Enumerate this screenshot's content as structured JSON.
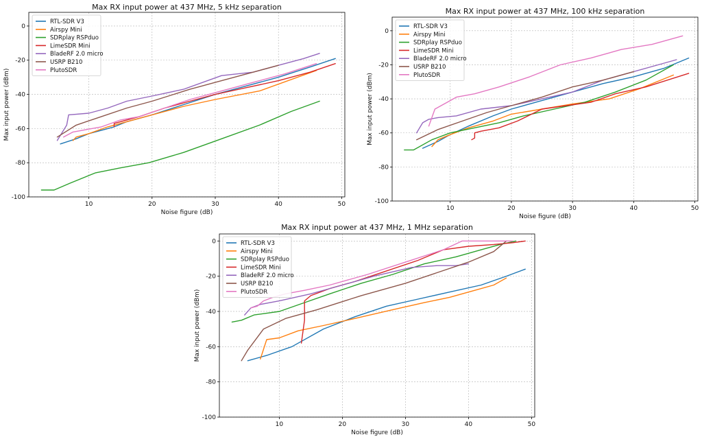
{
  "colors": {
    "RTL-SDR V3": "#1f77b4",
    "Airspy Mini": "#ff7f0e",
    "SDRplay RSPduo": "#2ca02c",
    "LimeSDR Mini": "#d62728",
    "BladeRF 2.0 micro": "#9467bd",
    "USRP B210": "#8c564b",
    "PlutoSDR": "#e377c2"
  },
  "chart_data": [
    {
      "type": "line",
      "title": "Max RX input power at 437 MHz, 5 kHz separation",
      "xlabel": "Noise figure (dB)",
      "ylabel": "Max input power (dBm)",
      "xlim": [
        0.5,
        50.5
      ],
      "ylim": [
        -100,
        8
      ],
      "xticks": [
        10,
        20,
        30,
        40,
        50
      ],
      "yticks": [
        -100,
        -80,
        -60,
        -40,
        -20,
        0
      ],
      "grid": true,
      "legend_position": "top-left",
      "series": [
        {
          "name": "RTL-SDR V3",
          "x": [
            5.5,
            8,
            10,
            12,
            14,
            16,
            20,
            25,
            30,
            35,
            40,
            45,
            49
          ],
          "y": [
            -69,
            -66,
            -63,
            -61,
            -59,
            -56,
            -52,
            -46,
            -40,
            -35,
            -30,
            -24,
            -19
          ]
        },
        {
          "name": "Airspy Mini",
          "x": [
            7.5,
            8,
            10,
            13,
            16,
            20,
            25,
            30,
            37,
            46
          ],
          "y": [
            -67,
            -65,
            -63,
            -59,
            -56,
            -52,
            -47,
            -43,
            -38,
            -26
          ]
        },
        {
          "name": "SDRplay RSPduo",
          "x": [
            2.5,
            4.5,
            7,
            11,
            15,
            19.5,
            25,
            31,
            37,
            42,
            46.5
          ],
          "y": [
            -96,
            -96,
            -92,
            -86,
            -83,
            -80,
            -74,
            -66,
            -58,
            -50,
            -44
          ]
        },
        {
          "name": "LimeSDR Mini",
          "x": [
            14,
            14,
            15,
            18,
            22,
            26,
            30,
            35,
            40,
            45,
            49
          ],
          "y": [
            -59,
            -57,
            -56,
            -53,
            -48,
            -44,
            -40,
            -36,
            -32,
            -27,
            -22
          ]
        },
        {
          "name": "BladeRF 2.0 micro",
          "x": [
            5,
            6.5,
            6.8,
            10,
            13,
            16,
            20,
            25,
            31,
            36,
            40,
            44,
            46.5
          ],
          "y": [
            -67,
            -58,
            -52,
            -51,
            -48,
            -44,
            -41,
            -37,
            -29,
            -27,
            -23,
            -19,
            -16
          ]
        },
        {
          "name": "USRP B210",
          "x": [
            5,
            8,
            12,
            16,
            20,
            26,
            30,
            36,
            40
          ],
          "y": [
            -65,
            -58,
            -53,
            -48,
            -44,
            -37,
            -33,
            -27,
            -23
          ]
        },
        {
          "name": "PlutoSDR",
          "x": [
            6,
            7.5,
            9,
            12,
            15,
            18,
            22,
            26,
            31,
            36,
            41,
            46
          ],
          "y": [
            -65,
            -62,
            -61,
            -59,
            -55,
            -53,
            -48,
            -43,
            -38,
            -33,
            -28,
            -22
          ]
        }
      ]
    },
    {
      "type": "line",
      "title": "Max RX input power at 437 MHz, 100 kHz separation",
      "xlabel": "Noise figure (dB)",
      "ylabel": "Max input power (dBm)",
      "xlim": [
        0.5,
        50.5
      ],
      "ylim": [
        -100,
        8
      ],
      "xticks": [
        10,
        20,
        30,
        40,
        50
      ],
      "yticks": [
        -100,
        -80,
        -60,
        -40,
        -20,
        0
      ],
      "grid": true,
      "legend_position": "top-left",
      "series": [
        {
          "name": "RTL-SDR V3",
          "x": [
            5.5,
            8,
            10,
            13,
            17,
            20,
            25,
            30,
            35,
            40,
            45,
            49
          ],
          "y": [
            -69,
            -65,
            -61,
            -56,
            -50,
            -46,
            -41,
            -36,
            -31,
            -27,
            -22,
            -16
          ]
        },
        {
          "name": "Airspy Mini",
          "x": [
            7,
            8,
            10,
            13,
            17,
            20,
            25,
            30,
            36,
            41,
            46.5
          ],
          "y": [
            -68,
            -64,
            -61,
            -57,
            -53,
            -49,
            -46,
            -43,
            -40,
            -34,
            -26
          ]
        },
        {
          "name": "SDRplay RSPduo",
          "x": [
            2.5,
            4,
            7,
            10,
            14,
            18,
            22,
            27,
            32,
            37,
            42,
            46.5
          ],
          "y": [
            -70,
            -70,
            -64,
            -60,
            -57,
            -54,
            -50,
            -46,
            -42,
            -36,
            -29,
            -20
          ]
        },
        {
          "name": "LimeSDR Mini",
          "x": [
            13.5,
            14,
            14,
            15,
            18,
            21,
            25,
            29,
            33,
            37,
            42,
            49
          ],
          "y": [
            -64,
            -63,
            -60,
            -59,
            -57,
            -53,
            -46,
            -44,
            -42,
            -37,
            -33,
            -25
          ]
        },
        {
          "name": "BladeRF 2.0 micro",
          "x": [
            4.5,
            5.5,
            6.5,
            8,
            11,
            15,
            20,
            25,
            30,
            35,
            40,
            44,
            47
          ],
          "y": [
            -60,
            -54,
            -52,
            -51,
            -50,
            -46,
            -44,
            -40,
            -36,
            -29,
            -24,
            -20,
            -17
          ]
        },
        {
          "name": "USRP B210",
          "x": [
            4.5,
            8,
            12,
            16,
            20,
            25,
            30,
            35,
            40
          ],
          "y": [
            -64,
            -58,
            -53,
            -48,
            -44,
            -39,
            -33,
            -29,
            -24
          ]
        },
        {
          "name": "PlutoSDR",
          "x": [
            6.5,
            7.5,
            8.5,
            9.5,
            11,
            14,
            18,
            23,
            28,
            33,
            38,
            43,
            48
          ],
          "y": [
            -56,
            -46,
            -44,
            -42,
            -39,
            -37,
            -33,
            -27,
            -20,
            -16,
            -11,
            -8,
            -3
          ]
        }
      ]
    },
    {
      "type": "line",
      "title": "Max RX input power at 437 MHz, 1 MHz separation",
      "xlabel": "Noise figure (dB)",
      "ylabel": "Max input power (dBm)",
      "xlim": [
        0.5,
        50.5
      ],
      "ylim": [
        -100,
        4
      ],
      "xticks": [
        10,
        20,
        30,
        40,
        50
      ],
      "yticks": [
        -100,
        -80,
        -60,
        -40,
        -20,
        0
      ],
      "grid": true,
      "legend_position": "top-left",
      "series": [
        {
          "name": "RTL-SDR V3",
          "x": [
            5,
            8,
            12,
            17,
            22,
            27,
            32,
            37,
            42,
            46,
            49
          ],
          "y": [
            -68,
            -65,
            -60,
            -50,
            -43,
            -37,
            -33,
            -29,
            -25,
            -20,
            -16
          ]
        },
        {
          "name": "Airspy Mini",
          "x": [
            7,
            8,
            10,
            13,
            17,
            22,
            28,
            33,
            37,
            41,
            44,
            46
          ],
          "y": [
            -67,
            -56,
            -55,
            -51,
            -48,
            -44,
            -39,
            -35,
            -32,
            -28,
            -25,
            -21
          ]
        },
        {
          "name": "SDRplay RSPduo",
          "x": [
            2.5,
            4,
            6,
            10,
            14,
            18,
            23,
            28,
            33,
            38,
            42,
            45,
            47.5
          ],
          "y": [
            -46,
            -45,
            -42,
            -40,
            -35,
            -30,
            -24,
            -19,
            -13,
            -9,
            -5,
            -2,
            0
          ]
        },
        {
          "name": "LimeSDR Mini",
          "x": [
            13.5,
            13.8,
            14,
            14,
            15,
            18,
            22,
            27,
            32,
            36,
            40,
            44,
            47,
            49
          ],
          "y": [
            -58,
            -50,
            -45,
            -34,
            -31,
            -27,
            -23,
            -17,
            -11,
            -5,
            -3,
            -2,
            -1,
            0
          ]
        },
        {
          "name": "BladeRF 2.0 micro",
          "x": [
            4.5,
            5.5,
            7,
            10,
            15,
            20,
            25,
            31,
            35,
            38,
            40
          ],
          "y": [
            -42,
            -38,
            -36,
            -34,
            -30,
            -25,
            -20,
            -15,
            -14,
            -14,
            -13
          ]
        },
        {
          "name": "USRP B210",
          "x": [
            4,
            5,
            7.5,
            11,
            16,
            23,
            30,
            35,
            40,
            44,
            46
          ],
          "y": [
            -68,
            -62,
            -50,
            -44,
            -39,
            -31,
            -24,
            -18,
            -12,
            -6,
            0
          ]
        },
        {
          "name": "PlutoSDR",
          "x": [
            5.5,
            6.5,
            7.5,
            9,
            11,
            14,
            18,
            24,
            30,
            36,
            39,
            42,
            45,
            47
          ],
          "y": [
            -38,
            -37,
            -34,
            -32,
            -30,
            -28,
            -25,
            -19,
            -12,
            -5,
            0,
            0,
            0,
            0
          ]
        }
      ]
    }
  ]
}
